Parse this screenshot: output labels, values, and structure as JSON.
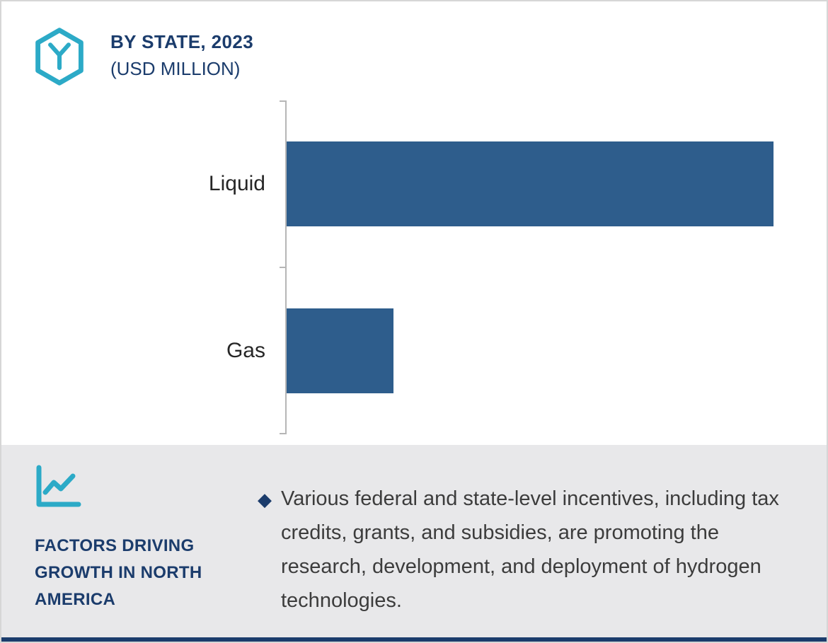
{
  "header": {
    "title": "BY STATE, 2023",
    "subtitle": "(USD MILLION)"
  },
  "chart_data": {
    "type": "bar",
    "orientation": "horizontal",
    "title": "BY STATE, 2023 (USD MILLION)",
    "categories": [
      "Liquid",
      "Gas"
    ],
    "values": [
      100,
      22
    ],
    "xlim": [
      0,
      100
    ],
    "xlabel": "",
    "ylabel": "",
    "grid": false,
    "legend": false,
    "value_axis_labeled": false,
    "bar_color": "#2e5d8c",
    "axis_color": "#b6b6b6"
  },
  "footer": {
    "heading": "FACTORS DRIVING GROWTH IN NORTH AMERICA",
    "bullet_glyph": "◆",
    "bullet_text": "Various federal and state-level incentives, including tax credits, grants, and subsidies, are promoting the research, development, and deployment of hydrogen technologies."
  },
  "icons": {
    "logo": "hexagon-y-logo-icon",
    "growth": "line-chart-icon",
    "bullet": "diamond-bullet-icon"
  },
  "colors": {
    "accent_teal": "#2caac7",
    "navy": "#1b3c6c",
    "bar_blue": "#2e5d8c",
    "panel_gray": "#e8e8ea",
    "text_dark": "#3c3c3c",
    "border_gray": "#d6d6d6"
  }
}
